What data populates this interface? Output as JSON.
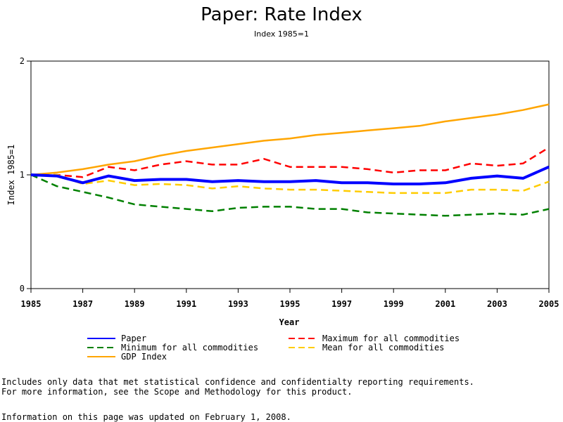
{
  "chart_data": {
    "type": "line",
    "title": "Paper: Rate Index",
    "subtitle": "Index 1985=1",
    "xlabel": "Year",
    "ylabel": "Index 1985=1",
    "xlim": [
      1985,
      2005
    ],
    "ylim": [
      0,
      2
    ],
    "x_ticks": [
      "1985",
      "1987",
      "1989",
      "1991",
      "1993",
      "1995",
      "1997",
      "1999",
      "2001",
      "2003",
      "2005"
    ],
    "y_ticks": [
      "0",
      "1",
      "2"
    ],
    "x": [
      1985,
      1986,
      1987,
      1988,
      1989,
      1990,
      1991,
      1992,
      1993,
      1994,
      1995,
      1996,
      1997,
      1998,
      1999,
      2000,
      2001,
      2002,
      2003,
      2004,
      2005
    ],
    "series": [
      {
        "name": "Paper",
        "color": "#0000ff",
        "style": "solid-thick",
        "values": [
          1.0,
          0.99,
          0.93,
          0.99,
          0.95,
          0.96,
          0.96,
          0.94,
          0.95,
          0.94,
          0.94,
          0.95,
          0.93,
          0.93,
          0.92,
          0.92,
          0.93,
          0.97,
          0.99,
          0.97,
          1.07
        ]
      },
      {
        "name": "Maximum for all commodities",
        "color": "#ff0000",
        "style": "dashed",
        "values": [
          1.0,
          1.0,
          0.98,
          1.07,
          1.04,
          1.09,
          1.12,
          1.09,
          1.09,
          1.14,
          1.07,
          1.07,
          1.07,
          1.05,
          1.02,
          1.04,
          1.04,
          1.1,
          1.08,
          1.1,
          1.24
        ]
      },
      {
        "name": "Minimum for all commodities",
        "color": "#008000",
        "style": "dashed",
        "values": [
          1.0,
          0.9,
          0.85,
          0.8,
          0.74,
          0.72,
          0.7,
          0.68,
          0.71,
          0.72,
          0.72,
          0.7,
          0.7,
          0.67,
          0.66,
          0.65,
          0.64,
          0.65,
          0.66,
          0.65,
          0.7
        ]
      },
      {
        "name": "Mean for all commodities",
        "color": "#ffcc00",
        "style": "dashed",
        "values": [
          1.0,
          1.0,
          0.92,
          0.95,
          0.91,
          0.92,
          0.91,
          0.88,
          0.9,
          0.88,
          0.87,
          0.87,
          0.86,
          0.85,
          0.84,
          0.84,
          0.84,
          0.87,
          0.87,
          0.86,
          0.94
        ]
      },
      {
        "name": "GDP Index",
        "color": "#ffa500",
        "style": "solid",
        "values": [
          1.0,
          1.02,
          1.05,
          1.09,
          1.12,
          1.17,
          1.21,
          1.24,
          1.27,
          1.3,
          1.32,
          1.35,
          1.37,
          1.39,
          1.41,
          1.43,
          1.47,
          1.5,
          1.53,
          1.57,
          1.62
        ]
      }
    ],
    "legend": [
      {
        "label": "Paper",
        "color": "#0000ff",
        "style": "solid"
      },
      {
        "label": "Maximum for all commodities",
        "color": "#ff0000",
        "style": "dashed"
      },
      {
        "label": "Minimum for all commodities",
        "color": "#008000",
        "style": "dashed"
      },
      {
        "label": "Mean for all commodities",
        "color": "#ffcc00",
        "style": "dashed"
      },
      {
        "label": "GDP Index",
        "color": "#ffa500",
        "style": "solid"
      }
    ],
    "legend_placement": "bottom",
    "grid": false
  },
  "notes": {
    "line1": "Includes only data that met statistical confidence and confidentialty reporting requirements.",
    "line2": "For more information, see the Scope and Methodology for this product.",
    "updated": "Information on this page was updated on February 1, 2008."
  }
}
